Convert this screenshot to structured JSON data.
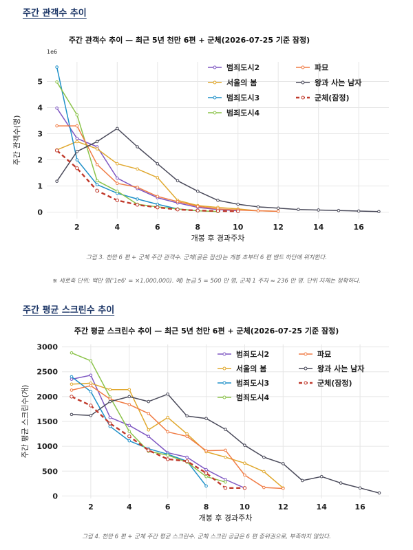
{
  "sections": [
    {
      "heading": "주간 관객수 추이",
      "caption": "그림 3. 천만 6 편 + 군체 주간 관객수. 군체(굵은 점선)는 개봉 초부터 6 편 밴드 하단에 위치한다.",
      "note": "※ 세로축 단위: 백만 명('1e6' = ×1,000,000). 예) 눈금 5 = 500 만 명, 군체 1 주차 ≈ 236 만 명. 단위 자체는 정확하다."
    },
    {
      "heading": "주간 평균 스크린수 추이",
      "caption": "그림 4. 천만 6 편 + 군체 주간 평균 스크린수. 군체 스크린 공급은 6 편 중위권으로, 부족하지 않았다."
    }
  ],
  "chart_data": [
    {
      "type": "line",
      "title": "주간 관객수 추이 — 최근 5년 천만 6편 + 군체(2026-07-25 기준 잠정)",
      "xlabel": "개봉 후 경과주차",
      "ylabel": "주간 관객수(명)",
      "y_multiplier_label": "1e6",
      "xlim": [
        0.5,
        17.5
      ],
      "ylim": [
        -0.25,
        5.75
      ],
      "xticks": [
        2,
        4,
        6,
        8,
        10,
        12,
        14,
        16
      ],
      "yticks": [
        0,
        1,
        2,
        3,
        4,
        5
      ],
      "grid": true,
      "legend_position": "top-right",
      "series": [
        {
          "name": "범죄도시2",
          "color": "#7e57c2",
          "dashed": false,
          "x": [
            1,
            2,
            3,
            4,
            5,
            6,
            7,
            8,
            9,
            10
          ],
          "values": [
            3.98,
            2.82,
            2.5,
            1.3,
            0.9,
            0.55,
            0.35,
            0.18,
            0.1,
            0.05
          ]
        },
        {
          "name": "서울의 봄",
          "color": "#e0a82e",
          "dashed": false,
          "x": [
            1,
            2,
            3,
            4,
            5,
            6,
            7,
            8,
            9,
            10,
            11,
            12
          ],
          "values": [
            2.38,
            2.7,
            2.42,
            1.85,
            1.65,
            1.32,
            0.45,
            0.25,
            0.18,
            0.12,
            0.05,
            0.03
          ]
        },
        {
          "name": "범죄도시3",
          "color": "#1e90c8",
          "dashed": false,
          "x": [
            1,
            2,
            3,
            4,
            5,
            6,
            7,
            8
          ],
          "values": [
            5.55,
            2.0,
            1.05,
            0.72,
            0.5,
            0.3,
            0.12,
            0.05
          ]
        },
        {
          "name": "범죄도시4",
          "color": "#8bc34a",
          "dashed": false,
          "x": [
            1,
            2,
            3,
            4,
            5,
            6,
            7,
            8,
            9
          ],
          "values": [
            4.98,
            3.72,
            1.2,
            0.8,
            0.3,
            0.2,
            0.12,
            0.05,
            0.02
          ]
        },
        {
          "name": "파묘",
          "color": "#f07c45",
          "dashed": false,
          "x": [
            1,
            2,
            3,
            4,
            5,
            6,
            7,
            8,
            9,
            10,
            11,
            12
          ],
          "values": [
            3.3,
            3.3,
            1.82,
            1.1,
            0.95,
            0.6,
            0.4,
            0.22,
            0.12,
            0.08,
            0.05,
            0.03
          ]
        },
        {
          "name": "왕과 사는 남자",
          "color": "#4a4a5a",
          "dashed": false,
          "x": [
            1,
            2,
            3,
            4,
            5,
            6,
            7,
            8,
            9,
            10,
            11,
            12,
            13,
            14,
            15,
            16,
            17
          ],
          "values": [
            1.18,
            2.32,
            2.7,
            3.2,
            2.5,
            1.85,
            1.2,
            0.8,
            0.45,
            0.3,
            0.2,
            0.15,
            0.1,
            0.08,
            0.06,
            0.04,
            0.02
          ]
        },
        {
          "name": "군체(잠정)",
          "color": "#c0392b",
          "dashed": true,
          "x": [
            1,
            2,
            3,
            4,
            5,
            6,
            7,
            8,
            9,
            10
          ],
          "values": [
            2.36,
            1.68,
            0.82,
            0.45,
            0.28,
            0.18,
            0.1,
            0.06,
            0.04,
            0.03
          ]
        }
      ]
    },
    {
      "type": "line",
      "title": "주간 평균 스크린수 추이 — 최근 5년 천만 6편 + 군체(2026-07-25 기준 잠정)",
      "xlabel": "개봉 후 경과주차",
      "ylabel": "주간 평균 스크린수(개)",
      "xlim": [
        0.5,
        17.5
      ],
      "ylim": [
        -50,
        3050
      ],
      "xticks": [
        2,
        4,
        6,
        8,
        10,
        12,
        14,
        16
      ],
      "yticks": [
        0,
        500,
        1000,
        1500,
        2000,
        2500,
        3000
      ],
      "grid": true,
      "legend_position": "top-right",
      "series": [
        {
          "name": "범죄도시2",
          "color": "#7e57c2",
          "dashed": false,
          "x": [
            1,
            2,
            3,
            4,
            5,
            6,
            7,
            8,
            9,
            10
          ],
          "values": [
            2350,
            2430,
            1580,
            1420,
            1200,
            870,
            780,
            530,
            330,
            160
          ]
        },
        {
          "name": "서울의 봄",
          "color": "#e0a82e",
          "dashed": false,
          "x": [
            1,
            2,
            3,
            4,
            5,
            6,
            7,
            8,
            9,
            10,
            11,
            12
          ],
          "values": [
            2250,
            2270,
            2140,
            2140,
            1330,
            1580,
            1250,
            890,
            780,
            660,
            490,
            160
          ]
        },
        {
          "name": "범죄도시3",
          "color": "#1e90c8",
          "dashed": false,
          "x": [
            1,
            2,
            3,
            4,
            5,
            6,
            7,
            8
          ],
          "values": [
            2400,
            2100,
            1400,
            1110,
            950,
            840,
            700,
            200
          ]
        },
        {
          "name": "범죄도시4",
          "color": "#8bc34a",
          "dashed": false,
          "x": [
            1,
            2,
            3,
            4,
            5,
            6,
            7,
            8,
            9
          ],
          "values": [
            2880,
            2720,
            1990,
            1300,
            900,
            820,
            680,
            390,
            280
          ]
        },
        {
          "name": "파묘",
          "color": "#f07c45",
          "dashed": false,
          "x": [
            1,
            2,
            3,
            4,
            5,
            6,
            7,
            8,
            9,
            10,
            11,
            12
          ],
          "values": [
            2130,
            2220,
            1950,
            1840,
            1660,
            1290,
            1200,
            910,
            920,
            420,
            170,
            150
          ]
        },
        {
          "name": "왕과 사는 남자",
          "color": "#4a4a5a",
          "dashed": false,
          "x": [
            1,
            2,
            3,
            4,
            5,
            6,
            7,
            8,
            9,
            10,
            11,
            12,
            13,
            14,
            15,
            16,
            17
          ],
          "values": [
            1640,
            1620,
            1900,
            2000,
            1900,
            2050,
            1610,
            1560,
            1340,
            1020,
            780,
            650,
            310,
            390,
            260,
            160,
            60
          ]
        },
        {
          "name": "군체(잠정)",
          "color": "#c0392b",
          "dashed": true,
          "x": [
            1,
            2,
            3,
            4,
            5,
            6,
            7,
            8,
            9,
            10
          ],
          "values": [
            2000,
            1820,
            1460,
            1200,
            920,
            740,
            700,
            460,
            160,
            160
          ]
        }
      ]
    }
  ]
}
